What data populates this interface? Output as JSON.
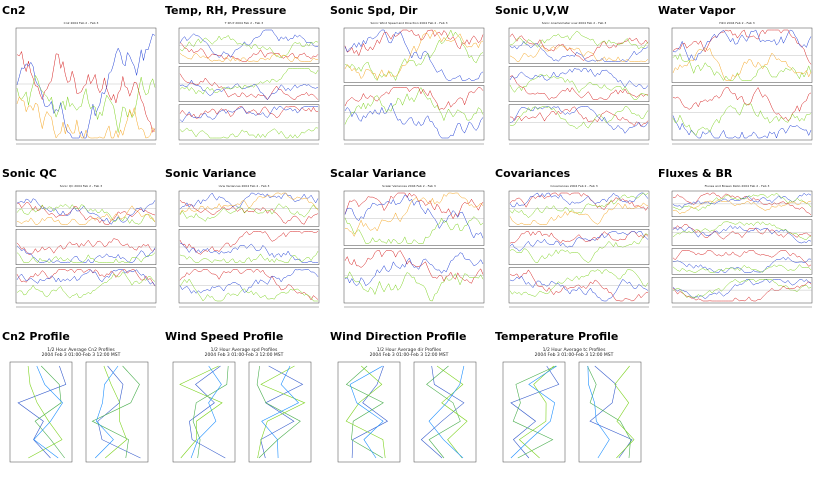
{
  "tiles": [
    {
      "title": "Cn2",
      "plot_title": "Cn2 2004 Feb 2 - Feb 3",
      "kind": "single"
    },
    {
      "title": "Temp, RH, Pressure",
      "plot_title": "T Rh P 2004 Feb 2 - Feb 3",
      "kind": "three"
    },
    {
      "title": "Sonic Spd, Dir",
      "plot_title": "Sonic Wind Speed and Direction 2004 Feb 2 - Feb 3",
      "kind": "two"
    },
    {
      "title": "Sonic U,V,W",
      "plot_title": "Sonic Anemometer uvw 2004 Feb 2 - Feb 3",
      "kind": "three"
    },
    {
      "title": "Water Vapor",
      "plot_title": "H2O 2004 Feb 2 - Feb 3",
      "kind": "two"
    },
    {
      "title": "Sonic QC",
      "plot_title": "Sonic QC 2004 Feb 2 - Feb 3",
      "kind": "three"
    },
    {
      "title": "Sonic Variance",
      "plot_title": "Uvw Variances 2004 Feb 2 - Feb 3",
      "kind": "three"
    },
    {
      "title": "Scalar Variance",
      "plot_title": "Scalar Variances 2004 Feb 2 - Feb 3",
      "kind": "two"
    },
    {
      "title": "Covariances",
      "plot_title": "Covariances 2004 Feb 2 - Feb 3",
      "kind": "three"
    },
    {
      "title": "Fluxes & BR",
      "plot_title": "Fluxes and Bowen Ratio 2004 Feb 2 - Feb 3",
      "kind": "four"
    },
    {
      "title": "Cn2 Profile",
      "plot_title": "1/2 Hour Average Cn2 Profiles",
      "plot_subtitle": "2004 Feb 3 01:00-Feb 3 12:00 MST",
      "kind": "profile"
    },
    {
      "title": "Wind Speed Profile",
      "plot_title": "1/2 Hour Average spd Profiles",
      "plot_subtitle": "2004 Feb 3 01:00-Feb 3 12:00 MST",
      "kind": "profile"
    },
    {
      "title": "Wind Direction Profile",
      "plot_title": "1/2 Hour Average dir Profiles",
      "plot_subtitle": "2004 Feb 3 01:00-Feb 3 12:00 MST",
      "kind": "profile"
    },
    {
      "title": "Temperature Profile",
      "plot_title": "1/2 Hour Average tc Profiles",
      "plot_subtitle": "2004 Feb 3 01:00-Feb 3 12:00 MST",
      "kind": "profile"
    }
  ],
  "chart_data": [
    {
      "type": "line",
      "title": "Cn2 2004 Feb 2 - Feb 3",
      "series_count": 4
    },
    {
      "type": "line",
      "title": "T Rh P 2004 Feb 2 - Feb 3",
      "series_count": 4
    },
    {
      "type": "line",
      "title": "Sonic Wind Speed and Direction 2004 Feb 2 - Feb 3",
      "series_count": 4
    },
    {
      "type": "line",
      "title": "Sonic Anemometer uvw 2004 Feb 2 - Feb 3",
      "series_count": 4
    },
    {
      "type": "line",
      "title": "H2O 2004 Feb 2 - Feb 3",
      "series_count": 4
    },
    {
      "type": "line",
      "title": "Sonic QC 2004 Feb 2 - Feb 3",
      "series_count": 4
    },
    {
      "type": "line",
      "title": "Uvw Variances 2004 Feb 2 - Feb 3",
      "series_count": 4
    },
    {
      "type": "line",
      "title": "Scalar Variances 2004 Feb 2 - Feb 3",
      "series_count": 4
    },
    {
      "type": "line",
      "title": "Covariances 2004 Feb 2 - Feb 3",
      "series_count": 4
    },
    {
      "type": "line",
      "title": "Fluxes and Bowen Ratio 2004 Feb 2 - Feb 3",
      "series_count": 4
    },
    {
      "type": "line",
      "title": "1/2 Hour Average Cn2 Profiles",
      "subtitle": "2004 Feb 3 01:00-Feb 3 12:00 MST"
    },
    {
      "type": "line",
      "title": "1/2 Hour Average spd Profiles",
      "subtitle": "2004 Feb 3 01:00-Feb 3 12:00 MST"
    },
    {
      "type": "line",
      "title": "1/2 Hour Average dir Profiles",
      "subtitle": "2004 Feb 3 01:00-Feb 3 12:00 MST"
    },
    {
      "type": "line",
      "title": "1/2 Hour Average tc Profiles",
      "subtitle": "2004 Feb 3 01:00-Feb 3 12:00 MST"
    }
  ],
  "colors": {
    "series": [
      "#d62020",
      "#1f3fd6",
      "#7ed321",
      "#f5a623"
    ],
    "profile": [
      "#3a5fcd",
      "#4caf50",
      "#7ed321",
      "#1e90ff"
    ]
  }
}
